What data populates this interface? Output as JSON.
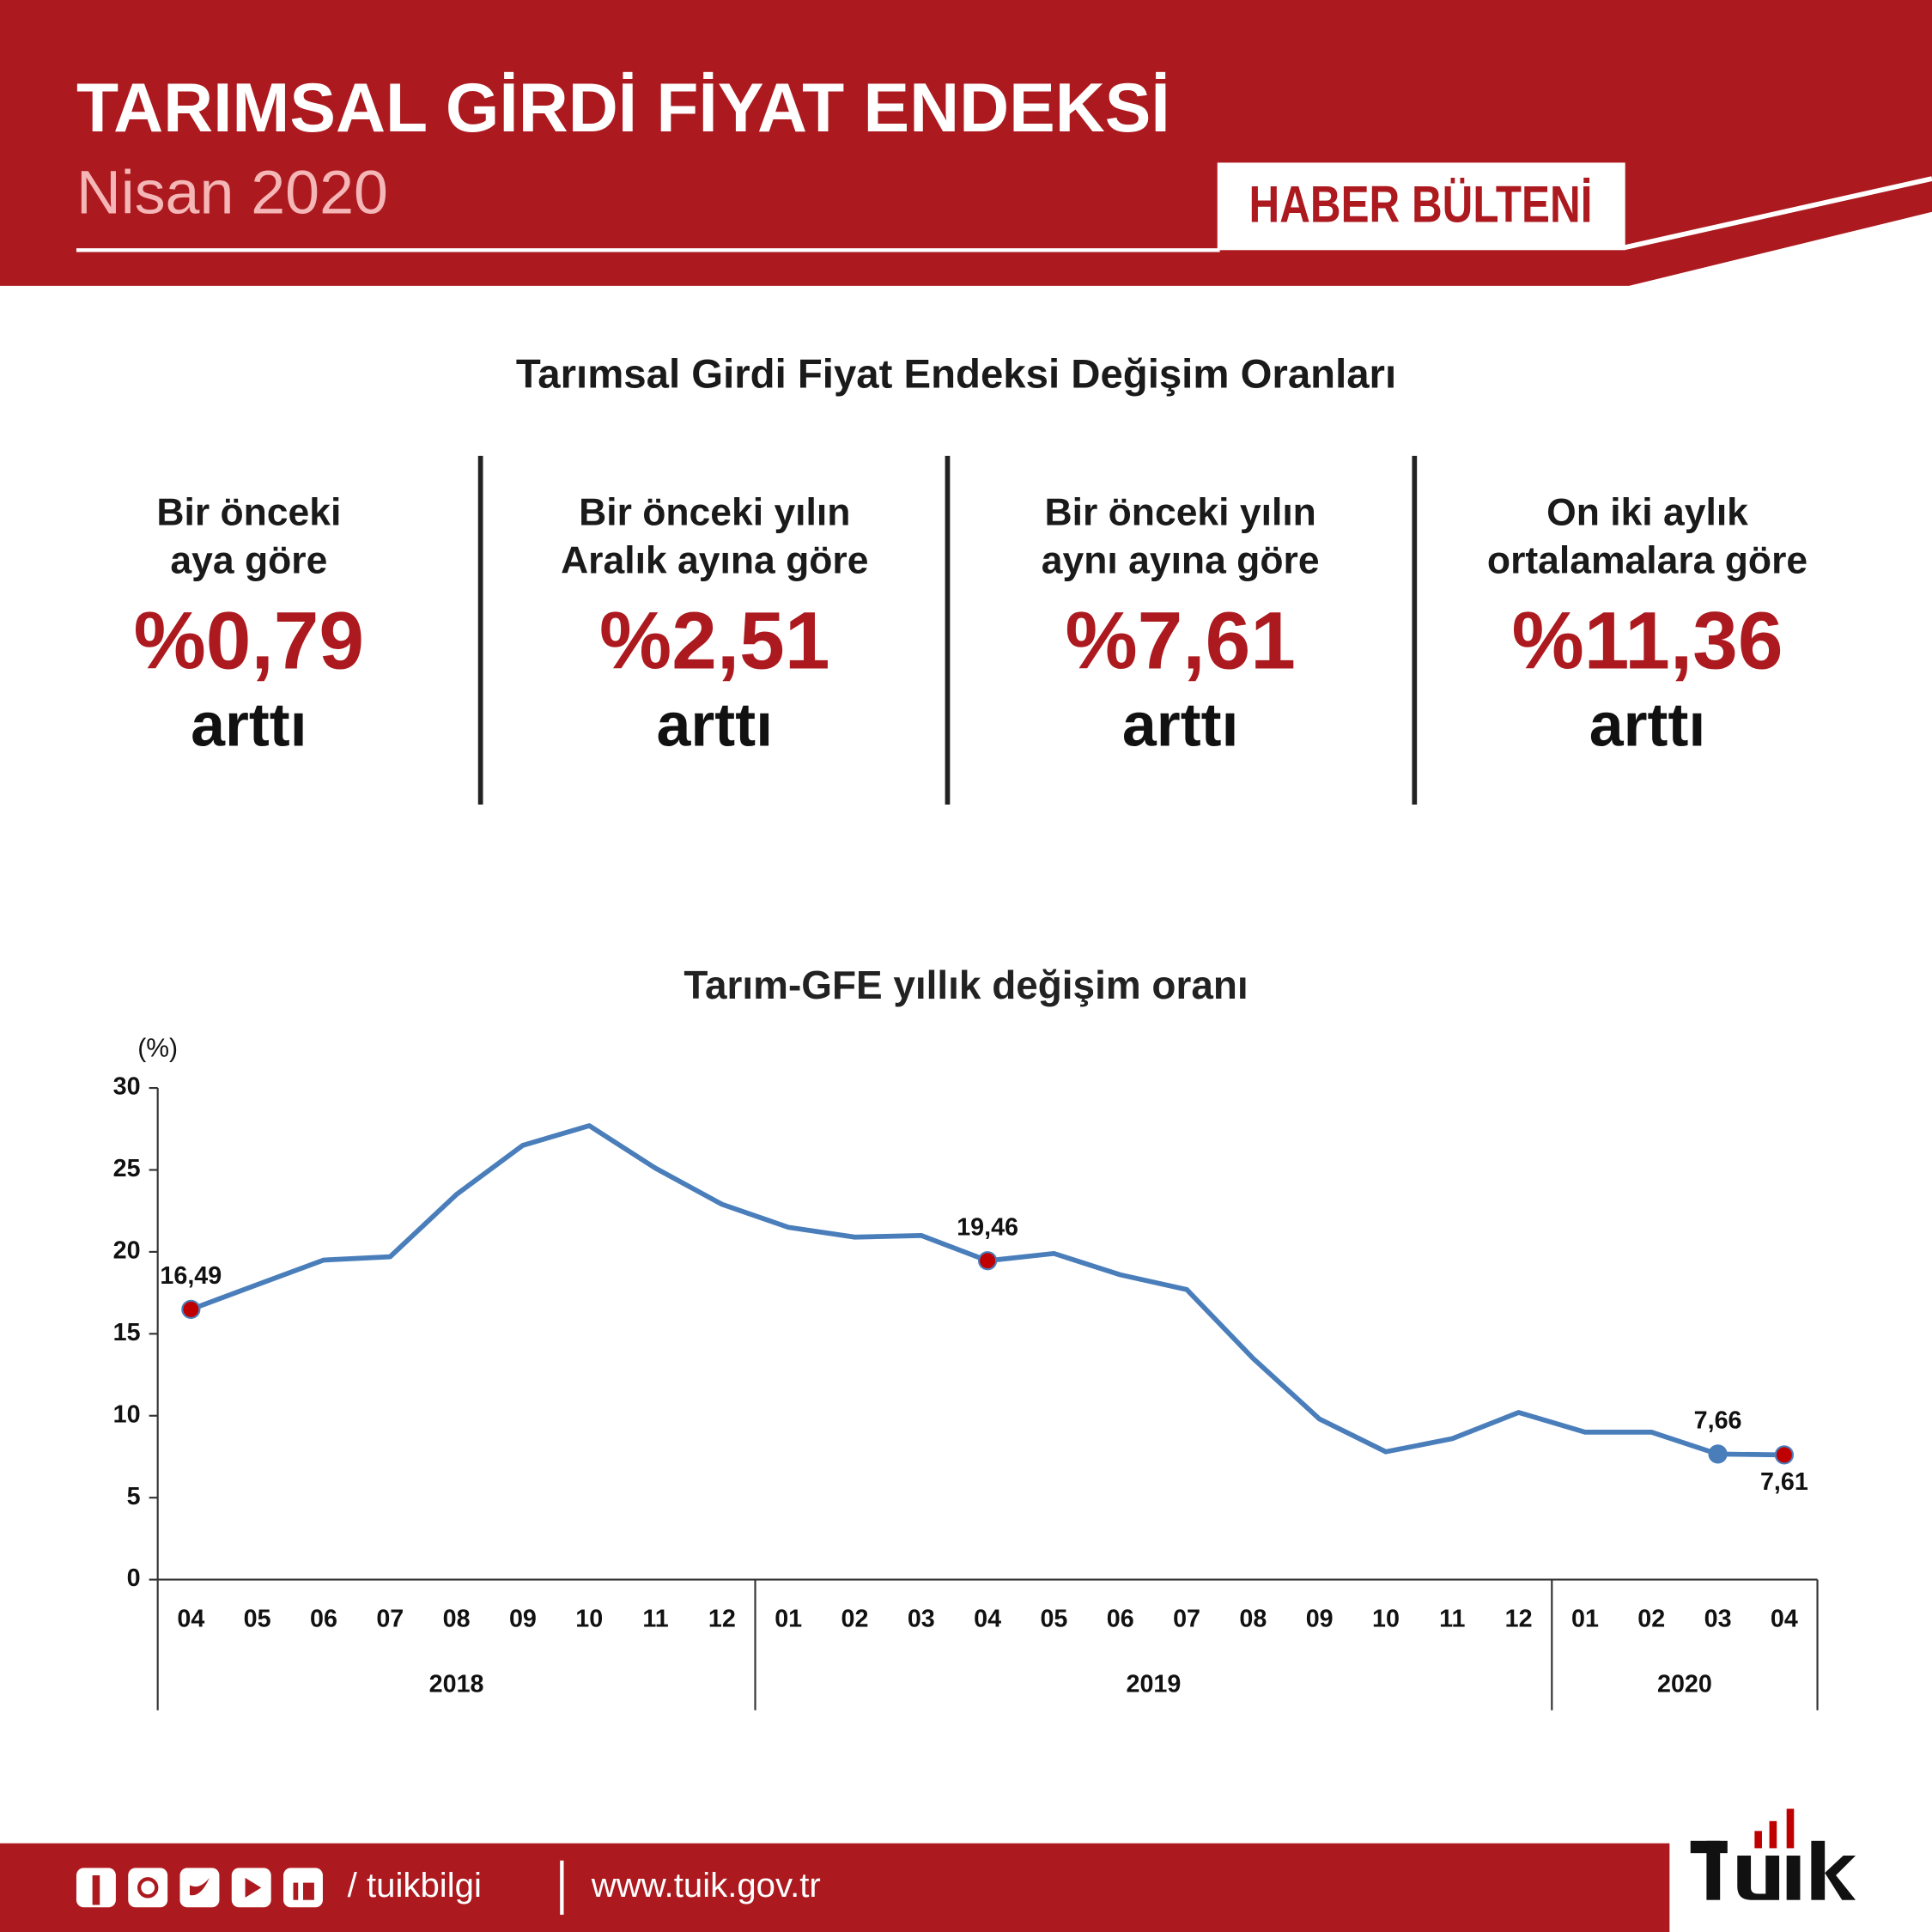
{
  "header": {
    "title": "TARIMSAL GİRDİ FİYAT ENDEKSİ",
    "period": "Nisan 2020",
    "badge": "HABER BÜLTENİ"
  },
  "summary": {
    "title": "Tarımsal Girdi Fiyat Endeksi Değişim Oranları",
    "items": [
      {
        "label": [
          "Bir önceki",
          "aya göre"
        ],
        "value": "%0,79",
        "change": "arttı"
      },
      {
        "label": [
          "Bir önceki yılın",
          "Aralık ayına göre"
        ],
        "value": "%2,51",
        "change": "arttı"
      },
      {
        "label": [
          "Bir önceki yılın",
          "aynı ayına göre"
        ],
        "value": "%7,61",
        "change": "arttı"
      },
      {
        "label": [
          "On iki aylık",
          "ortalamalara göre"
        ],
        "value": "%11,36",
        "change": "arttı"
      }
    ]
  },
  "chart_data": {
    "type": "line",
    "title": "Tarım-GFE yıllık değişim oranı",
    "y_label": "(%)",
    "groups": [
      {
        "name": "2018",
        "categories": [
          "04",
          "05",
          "06",
          "07",
          "08",
          "09",
          "10",
          "11",
          "12"
        ]
      },
      {
        "name": "2019",
        "categories": [
          "01",
          "02",
          "03",
          "04",
          "05",
          "06",
          "07",
          "08",
          "09",
          "10",
          "11",
          "12"
        ]
      },
      {
        "name": "2020",
        "categories": [
          "01",
          "02",
          "03",
          "04"
        ]
      }
    ],
    "series": [
      {
        "name": "Tarım-GFE",
        "color": "#4a7ebb",
        "values": [
          16.49,
          18.0,
          19.5,
          19.7,
          23.5,
          26.5,
          27.7,
          25.1,
          22.9,
          21.5,
          20.9,
          21.0,
          19.46,
          19.9,
          18.6,
          17.7,
          13.5,
          9.8,
          7.8,
          8.6,
          10.2,
          9.0,
          9.0,
          7.66,
          7.61
        ],
        "value_labels": [
          "16,49",
          null,
          null,
          null,
          null,
          null,
          null,
          null,
          null,
          null,
          null,
          null,
          "19,46",
          null,
          null,
          null,
          null,
          null,
          null,
          null,
          null,
          null,
          null,
          "7,66",
          "7,61"
        ],
        "marker_colors": [
          "#c00000",
          null,
          null,
          null,
          null,
          null,
          null,
          null,
          null,
          null,
          null,
          null,
          "#c00000",
          null,
          null,
          null,
          null,
          null,
          null,
          null,
          null,
          null,
          null,
          "#4a7ebb",
          "#c00000"
        ]
      }
    ],
    "ylim": [
      0,
      30
    ],
    "yticks": [
      0,
      5,
      10,
      15,
      20,
      25,
      30
    ]
  },
  "footer": {
    "handle": "/ tuikbilgi",
    "url": "www.tuik.gov.tr"
  }
}
